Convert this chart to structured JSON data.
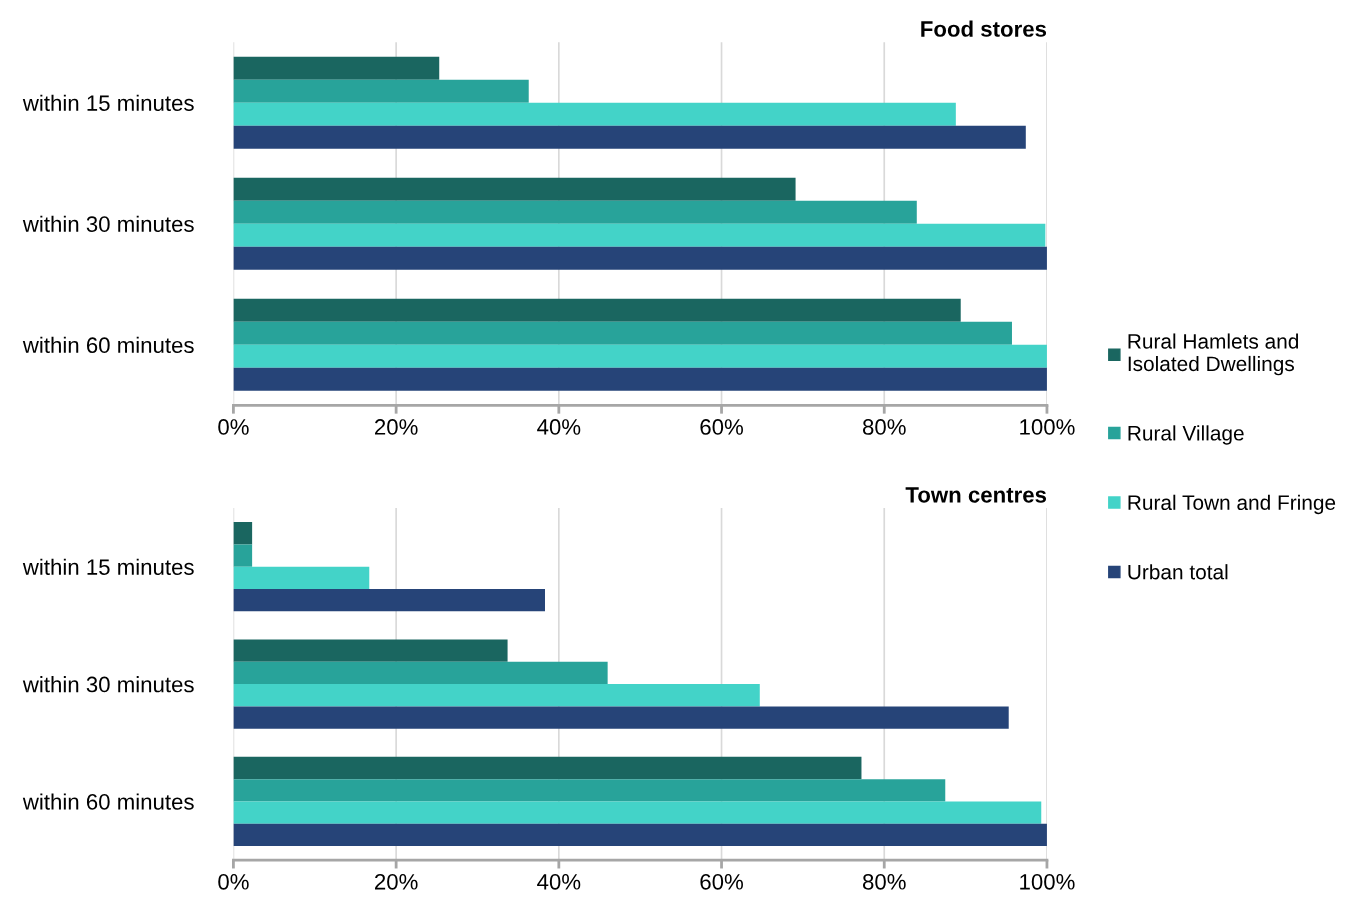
{
  "chart_data": [
    {
      "type": "bar",
      "orientation": "horizontal",
      "title": "Food stores",
      "categories": [
        "within 15 minutes",
        "within 30 minutes",
        "within 60 minutes"
      ],
      "series": [
        {
          "name": "Rural Hamlets and\nIsolated Dwellings",
          "color": "#1a6660",
          "values": [
            25.3,
            69.1,
            89.4
          ]
        },
        {
          "name": "Rural Village",
          "color": "#28a39a",
          "values": [
            36.3,
            84.0,
            95.7
          ]
        },
        {
          "name": "Rural Town and Fringe",
          "color": "#43d3c8",
          "values": [
            88.8,
            99.8,
            100
          ]
        },
        {
          "name": "Urban total",
          "color": "#264478",
          "values": [
            97.4,
            100,
            100
          ]
        }
      ],
      "xlim": [
        0,
        100
      ],
      "xticks": [
        {
          "value": 0,
          "label": "0%"
        },
        {
          "value": 20,
          "label": "20%"
        },
        {
          "value": 40,
          "label": "40%"
        },
        {
          "value": 60,
          "label": "60%"
        },
        {
          "value": 80,
          "label": "80%"
        },
        {
          "value": 100,
          "label": "100%"
        }
      ],
      "grid": "x",
      "legend": "right"
    },
    {
      "type": "bar",
      "orientation": "horizontal",
      "title": "Town centres",
      "categories": [
        "within 15 minutes",
        "within 30 minutes",
        "within 60 minutes"
      ],
      "series": [
        {
          "color": "#1a6660",
          "values": [
            2.3,
            33.7,
            77.2
          ]
        },
        {
          "color": "#28a39a",
          "values": [
            2.3,
            46.0,
            87.5
          ]
        },
        {
          "color": "#43d3c8",
          "values": [
            16.7,
            64.7,
            99.3
          ]
        },
        {
          "color": "#264478",
          "values": [
            38.3,
            95.3,
            100
          ]
        }
      ],
      "xlim": [
        0,
        100
      ],
      "xticks": [
        {
          "value": 0,
          "label": "0%"
        },
        {
          "value": 20,
          "label": "20%"
        },
        {
          "value": 40,
          "label": "40%"
        },
        {
          "value": 60,
          "label": "60%"
        },
        {
          "value": 80,
          "label": "80%"
        },
        {
          "value": 100,
          "label": "100%"
        }
      ],
      "grid": "x",
      "legend": "right"
    }
  ]
}
